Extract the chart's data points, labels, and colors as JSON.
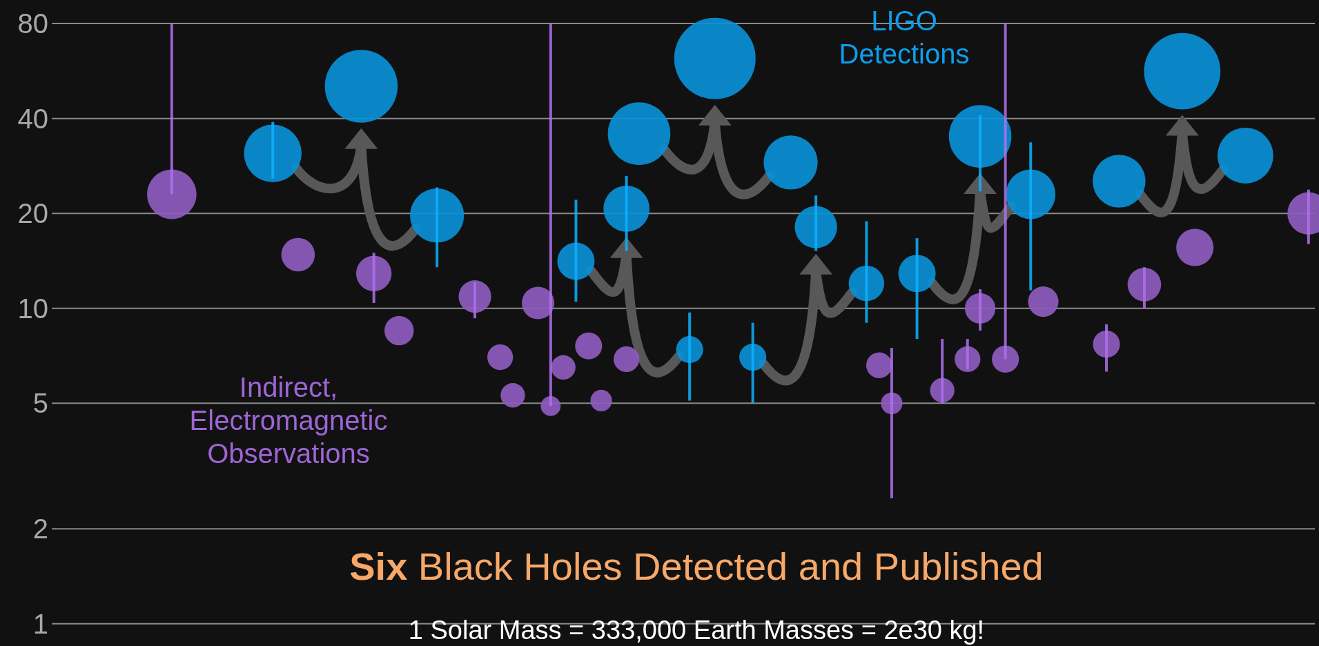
{
  "chart_data": {
    "type": "bubble",
    "title": "Six Black Holes Detected and Published",
    "subtitle": "1 Solar Mass = 333,000 Earth Masses = 2e30 kg!",
    "log": "y",
    "ylim": [
      0.85,
      95
    ],
    "yticks": [
      1,
      2,
      5,
      10,
      20,
      40,
      80
    ],
    "grid": "y",
    "tick_labels": "y",
    "legend": false,
    "categories": [
      null,
      null,
      null,
      null,
      null,
      null,
      null,
      null,
      null,
      null,
      null,
      null,
      null,
      null,
      null,
      null,
      null,
      null,
      null,
      null,
      null,
      null,
      null,
      null,
      null,
      null,
      null,
      null,
      null,
      null,
      null,
      null,
      null,
      null,
      null,
      null,
      null,
      null,
      null,
      null,
      null,
      null,
      null,
      null,
      null,
      null,
      null,
      null,
      null,
      null,
      null,
      null,
      null,
      null,
      null,
      null,
      null,
      null,
      null,
      null,
      null,
      null,
      null,
      null,
      null,
      null,
      null,
      null,
      null,
      null,
      null,
      null,
      null,
      null,
      null,
      null,
      null,
      null,
      null,
      null,
      null,
      null,
      null,
      null,
      null,
      null,
      null,
      null,
      null,
      null,
      null,
      null,
      null,
      null,
      null,
      null,
      null,
      null,
      null,
      null
    ],
    "series": [
      {
        "name": "Indirect, Electromagnetic Observations",
        "color": "#8e5bbf",
        "values": [
          null,
          null,
          null,
          null,
          null,
          null,
          null,
          null,
          null,
          23,
          null,
          null,
          null,
          null,
          null,
          null,
          null,
          null,
          null,
          14.8,
          null,
          null,
          null,
          null,
          null,
          12.9,
          null,
          8.5,
          null,
          null,
          null,
          null,
          null,
          10.9,
          null,
          7.0,
          5.3,
          null,
          10.4,
          4.9,
          6.5,
          null,
          7.6,
          5.1,
          null,
          6.9,
          null,
          null,
          null,
          null,
          null,
          null,
          null,
          null,
          null,
          null,
          null,
          null,
          null,
          null,
          null,
          null,
          null,
          null,
          null,
          6.6,
          5.0,
          null,
          null,
          null,
          5.5,
          null,
          6.9,
          10.0,
          null,
          6.9,
          null,
          null,
          10.5,
          null,
          null,
          null,
          null,
          7.7,
          null,
          null,
          11.9,
          null,
          null,
          null,
          15.6,
          null,
          null,
          null,
          null,
          null,
          null,
          null,
          null,
          20
        ],
        "sizes": [
          null,
          null,
          null,
          null,
          null,
          null,
          null,
          null,
          null,
          0.37,
          null,
          null,
          null,
          null,
          null,
          null,
          null,
          null,
          null,
          0.17,
          null,
          null,
          null,
          null,
          null,
          0.19,
          null,
          0.13,
          null,
          null,
          null,
          null,
          null,
          0.16,
          null,
          0.1,
          0.09,
          null,
          0.16,
          0.06,
          0.09,
          null,
          0.11,
          0.07,
          null,
          0.1,
          null,
          null,
          null,
          null,
          null,
          null,
          null,
          null,
          null,
          null,
          null,
          null,
          null,
          null,
          null,
          null,
          null,
          null,
          null,
          0.1,
          0.07,
          null,
          null,
          null,
          0.09,
          null,
          0.1,
          0.14,
          null,
          0.11,
          null,
          null,
          0.14,
          null,
          null,
          null,
          null,
          0.11,
          null,
          null,
          0.17,
          null,
          null,
          null,
          0.21,
          null,
          null,
          null,
          null,
          null,
          null,
          null,
          null,
          0.27
        ],
        "errors": [
          null,
          null,
          null,
          null,
          null,
          null,
          null,
          null,
          null,
          [
            23,
            80
          ],
          null,
          null,
          null,
          null,
          null,
          null,
          null,
          null,
          null,
          null,
          null,
          null,
          null,
          null,
          null,
          [
            10.4,
            15
          ],
          null,
          null,
          null,
          null,
          null,
          null,
          null,
          [
            9.3,
            12.1
          ],
          null,
          null,
          null,
          null,
          null,
          [
            4.9,
            80
          ],
          null,
          null,
          null,
          null,
          null,
          null,
          null,
          null,
          null,
          null,
          null,
          null,
          null,
          null,
          null,
          null,
          null,
          null,
          null,
          null,
          null,
          null,
          null,
          null,
          null,
          null,
          [
            2.5,
            7.5
          ],
          null,
          null,
          null,
          [
            5.0,
            8.0
          ],
          null,
          [
            6.4,
            8.0
          ],
          [
            8.5,
            11.5
          ],
          null,
          [
            6.9,
            80
          ],
          null,
          null,
          null,
          null,
          null,
          null,
          null,
          [
            6.3,
            8.9
          ],
          null,
          null,
          [
            10,
            13.5
          ],
          null,
          null,
          null,
          null,
          null,
          null,
          null,
          null,
          null,
          null,
          null,
          null,
          [
            16,
            23.8
          ]
        ]
      },
      {
        "name": "LIGO Detections",
        "color": "#0a8fd6",
        "values": [
          null,
          null,
          null,
          null,
          null,
          null,
          null,
          null,
          null,
          null,
          null,
          null,
          null,
          null,
          null,
          null,
          null,
          31,
          null,
          null,
          null,
          null,
          null,
          null,
          50.6,
          null,
          null,
          null,
          null,
          null,
          19.7,
          null,
          null,
          null,
          null,
          null,
          null,
          null,
          null,
          null,
          null,
          14.1,
          null,
          null,
          null,
          20.7,
          35.8,
          null,
          null,
          null,
          7.4,
          null,
          62,
          null,
          null,
          7.0,
          null,
          null,
          29,
          null,
          18.1,
          null,
          null,
          null,
          12,
          null,
          null,
          null,
          12.9,
          null,
          null,
          null,
          null,
          35.1,
          null,
          null,
          null,
          23,
          null,
          null,
          null,
          null,
          null,
          null,
          25.3,
          null,
          null,
          null,
          null,
          56.5,
          null,
          null,
          null,
          null,
          30.5,
          null,
          null,
          null,
          null,
          null
        ],
        "sizes": [
          null,
          null,
          null,
          null,
          null,
          null,
          null,
          null,
          null,
          null,
          null,
          null,
          null,
          null,
          null,
          null,
          null,
          0.5,
          null,
          null,
          null,
          null,
          null,
          null,
          0.8,
          null,
          null,
          null,
          null,
          null,
          0.44,
          null,
          null,
          null,
          null,
          null,
          null,
          null,
          null,
          null,
          null,
          0.21,
          null,
          null,
          null,
          0.32,
          0.59,
          null,
          null,
          null,
          0.11,
          null,
          1,
          null,
          null,
          0.11,
          null,
          null,
          0.44,
          null,
          0.27,
          null,
          null,
          null,
          0.19,
          null,
          null,
          null,
          0.21,
          null,
          null,
          null,
          null,
          0.59,
          null,
          null,
          null,
          0.37,
          null,
          null,
          null,
          null,
          null,
          null,
          0.42,
          null,
          null,
          null,
          null,
          0.88,
          null,
          null,
          null,
          null,
          0.47,
          null,
          null,
          null,
          null,
          null
        ],
        "errors": [
          null,
          null,
          null,
          null,
          null,
          null,
          null,
          null,
          null,
          null,
          null,
          null,
          null,
          null,
          null,
          null,
          null,
          [
            25.8,
            39
          ],
          null,
          null,
          null,
          null,
          null,
          null,
          null,
          null,
          null,
          null,
          null,
          null,
          [
            13.5,
            24.2
          ],
          null,
          null,
          null,
          null,
          null,
          null,
          null,
          null,
          null,
          null,
          [
            10.5,
            22.1
          ],
          null,
          null,
          null,
          [
            15.2,
            26.3
          ],
          null,
          null,
          null,
          null,
          [
            5.1,
            9.7
          ],
          null,
          null,
          null,
          null,
          [
            5.0,
            9.0
          ],
          null,
          null,
          null,
          null,
          [
            15.2,
            22.8
          ],
          null,
          null,
          null,
          [
            9.0,
            18.9
          ],
          null,
          null,
          null,
          [
            8.0,
            16.7
          ],
          null,
          null,
          null,
          null,
          [
            23.5,
            41
          ],
          null,
          null,
          null,
          [
            11.4,
            33.6
          ],
          null,
          null,
          null,
          null,
          null,
          null,
          null,
          null,
          null,
          null,
          null,
          null,
          null,
          null,
          null,
          null,
          null,
          null,
          null,
          null,
          null,
          null
        ]
      }
    ]
  }
}
